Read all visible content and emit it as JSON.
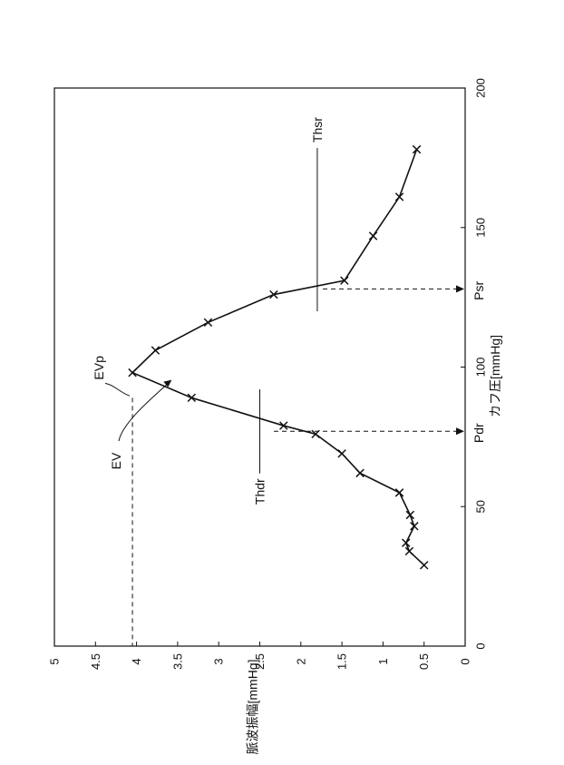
{
  "chart_data": {
    "type": "line",
    "orientation": "rotated-90-ccw",
    "xlabel": "カフ圧[mmHg]",
    "ylabel": "脈波振幅[mmHg]",
    "xlim": [
      0,
      200
    ],
    "ylim": [
      0,
      5
    ],
    "x_ticks": [
      "0",
      "50",
      "100",
      "150",
      "200"
    ],
    "y_ticks": [
      "0",
      "0.5",
      "1",
      "1.5",
      "2",
      "2.5",
      "3",
      "3.5",
      "4",
      "4.5",
      "5"
    ],
    "grid": false,
    "series": [
      {
        "marker": "x",
        "x": [
          29,
          34,
          37,
          43,
          47,
          55,
          62,
          69,
          76,
          79,
          89,
          98,
          106,
          116,
          126,
          131,
          147,
          161,
          178
        ],
        "y": [
          0.5,
          0.68,
          0.72,
          0.62,
          0.67,
          0.8,
          1.28,
          1.5,
          1.82,
          2.21,
          3.33,
          4.05,
          3.77,
          3.13,
          2.33,
          1.47,
          1.12,
          0.8,
          0.59
        ]
      }
    ],
    "annotations": [
      {
        "name": "EVp",
        "label": "EVp",
        "target_x": 89,
        "target_y": 4.05
      },
      {
        "name": "EV",
        "label": "EV",
        "target_x": 98,
        "target_y": 3.65
      },
      {
        "name": "Thdr",
        "label": "Thdr",
        "value": 2.5,
        "x_range": [
          71,
          92
        ]
      },
      {
        "name": "Thsr",
        "label": "Thsr",
        "value": 1.8,
        "x_range": [
          120,
          172
        ]
      },
      {
        "name": "Pdr",
        "label": "Pdr",
        "x": 77
      },
      {
        "name": "Psr",
        "label": "Psr",
        "x": 128
      },
      {
        "name": "EVp-level",
        "label": "",
        "y": 4.05
      }
    ]
  }
}
